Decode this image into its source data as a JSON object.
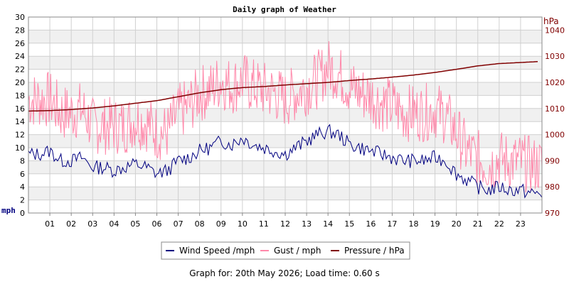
{
  "chart_data": {
    "type": "line",
    "title": "Daily graph of Weather",
    "y_left_unit": "mph",
    "y_right_unit": "hPa",
    "y_left_ticks": [
      "0",
      "2",
      "4",
      "6",
      "8",
      "10",
      "12",
      "14",
      "16",
      "18",
      "20",
      "22",
      "24",
      "26",
      "28",
      "30"
    ],
    "y_right_ticks": [
      "970",
      "980",
      "990",
      "1000",
      "1010",
      "1020",
      "1030",
      "1040"
    ],
    "x_ticks": [
      "01",
      "02",
      "03",
      "04",
      "05",
      "06",
      "07",
      "08",
      "09",
      "10",
      "11",
      "12",
      "13",
      "14",
      "15",
      "16",
      "17",
      "18",
      "19",
      "20",
      "21",
      "22",
      "23"
    ],
    "ylim_left": [
      0,
      30
    ],
    "ylim_right": [
      970,
      1045
    ],
    "xlim_hours": [
      0,
      24
    ],
    "grid": true,
    "legend_position": "bottom",
    "legend": [
      "Wind Speed /mph",
      "Gust / mph",
      "Pressure / hPa"
    ],
    "colors": {
      "wind": "#000080",
      "gust": "#ff88aa",
      "pressure": "#800000",
      "band": "#f0f0f0",
      "gridline": "#d0d0d0",
      "right_axis_text": "#800000",
      "left_unit_text": "#000080"
    },
    "series": [
      {
        "name": "Wind Speed /mph",
        "x": [
          0,
          0.5,
          1,
          1.5,
          2,
          2.5,
          3,
          3.5,
          4,
          4.5,
          5,
          5.5,
          6,
          6.5,
          7,
          7.5,
          8,
          8.5,
          9,
          9.5,
          10,
          10.5,
          11,
          11.5,
          12,
          12.5,
          13,
          13.5,
          14,
          14.5,
          15,
          15.5,
          16,
          16.5,
          17,
          17.5,
          18,
          18.5,
          19,
          19.5,
          20,
          20.5,
          21,
          21.5,
          22,
          22.5,
          23,
          23.5,
          24
        ],
        "values": [
          9,
          9,
          9.5,
          8,
          8,
          8.5,
          7,
          7,
          6.5,
          7,
          7.5,
          7,
          6,
          6.5,
          8,
          8.5,
          9.5,
          10,
          11,
          10.5,
          11.5,
          10.5,
          10,
          9.5,
          9,
          10,
          11,
          12,
          12.5,
          12,
          10.5,
          10,
          9.5,
          9,
          8.5,
          8,
          8,
          8,
          8.5,
          8,
          6,
          5,
          4,
          3.5,
          4,
          3.5,
          3.5,
          3,
          3
        ]
      },
      {
        "name": "Gust / mph",
        "x": [
          0,
          0.5,
          1,
          1.5,
          2,
          2.5,
          3,
          3.5,
          4,
          4.5,
          5,
          5.5,
          6,
          6.5,
          7,
          7.5,
          8,
          8.5,
          9,
          9.5,
          10,
          10.5,
          11,
          11.5,
          12,
          12.5,
          13,
          13.5,
          14,
          14.5,
          15,
          15.5,
          16,
          16.5,
          17,
          17.5,
          18,
          18.5,
          19,
          19.5,
          20,
          20.5,
          21,
          21.5,
          22,
          22.5,
          23,
          23.5,
          24
        ],
        "values": [
          16,
          16,
          16,
          14,
          14,
          14.5,
          12,
          12,
          12,
          12,
          13,
          12.5,
          11,
          11,
          14,
          15,
          17,
          17.5,
          19,
          18,
          19,
          18,
          17.5,
          17,
          16,
          17,
          18,
          19,
          21,
          20,
          18,
          17,
          16.5,
          15.5,
          15,
          14,
          14,
          14,
          14.5,
          13.5,
          11,
          8,
          7,
          6,
          7,
          6.5,
          6.5,
          6,
          6
        ]
      },
      {
        "name": "Pressure / hPa",
        "x": [
          0,
          1,
          2,
          3,
          4,
          5,
          6,
          7,
          8,
          9,
          10,
          11,
          12,
          13,
          14,
          15,
          16,
          17,
          18,
          19,
          20,
          21,
          22,
          23,
          23.9
        ],
        "values": [
          1009,
          1009.2,
          1009.6,
          1010.2,
          1011,
          1012,
          1013,
          1014.5,
          1016,
          1017.2,
          1018,
          1018.4,
          1019,
          1019.5,
          1020,
          1020.7,
          1021.3,
          1022,
          1022.8,
          1023.8,
          1025,
          1026.3,
          1027.2,
          1027.6,
          1028
        ]
      }
    ]
  },
  "footer": {
    "text": "Graph for: 20th May 2026; Load time: 0.60 s"
  }
}
